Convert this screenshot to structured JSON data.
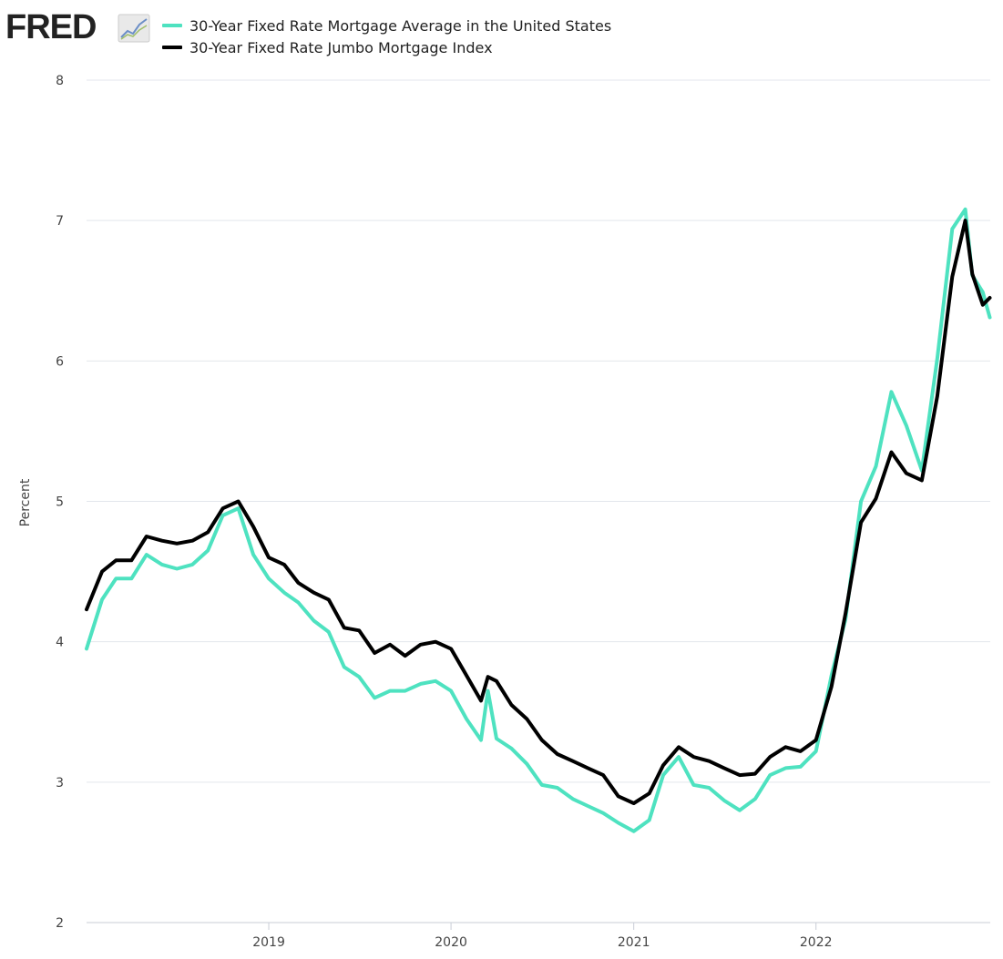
{
  "logo": {
    "text": "FRED"
  },
  "legend": {
    "items": [
      {
        "label": "30-Year Fixed Rate Mortgage Average in the United States",
        "color": "#4ee2c0"
      },
      {
        "label": "30-Year Fixed Rate Jumbo Mortgage Index",
        "color": "#000000"
      }
    ]
  },
  "chart_data": {
    "type": "line",
    "ylabel": "Percent",
    "ylim": [
      2,
      8
    ],
    "yticks": [
      2,
      3,
      4,
      5,
      6,
      7,
      8
    ],
    "xlim": [
      "2018-01-01",
      "2022-12-16"
    ],
    "xticks": [
      {
        "date": "2019-01-01",
        "label": "2019"
      },
      {
        "date": "2020-01-01",
        "label": "2020"
      },
      {
        "date": "2021-01-01",
        "label": "2021"
      },
      {
        "date": "2022-01-01",
        "label": "2022"
      }
    ],
    "grid": true,
    "legend_position": "top-left",
    "series": [
      {
        "name": "30-Year Fixed Rate Mortgage Average in the United States",
        "color": "#4ee2c0",
        "points": [
          [
            "2018-01-01",
            3.95
          ],
          [
            "2018-02-01",
            4.3
          ],
          [
            "2018-03-01",
            4.45
          ],
          [
            "2018-04-01",
            4.45
          ],
          [
            "2018-05-01",
            4.62
          ],
          [
            "2018-06-01",
            4.55
          ],
          [
            "2018-07-01",
            4.52
          ],
          [
            "2018-08-01",
            4.55
          ],
          [
            "2018-09-01",
            4.65
          ],
          [
            "2018-10-01",
            4.9
          ],
          [
            "2018-11-01",
            4.95
          ],
          [
            "2018-12-01",
            4.62
          ],
          [
            "2019-01-01",
            4.45
          ],
          [
            "2019-02-01",
            4.35
          ],
          [
            "2019-03-01",
            4.28
          ],
          [
            "2019-04-01",
            4.15
          ],
          [
            "2019-05-01",
            4.07
          ],
          [
            "2019-06-01",
            3.82
          ],
          [
            "2019-07-01",
            3.75
          ],
          [
            "2019-08-01",
            3.6
          ],
          [
            "2019-09-01",
            3.65
          ],
          [
            "2019-10-01",
            3.65
          ],
          [
            "2019-11-01",
            3.7
          ],
          [
            "2019-12-01",
            3.72
          ],
          [
            "2020-01-01",
            3.65
          ],
          [
            "2020-02-01",
            3.45
          ],
          [
            "2020-03-01",
            3.3
          ],
          [
            "2020-03-15",
            3.65
          ],
          [
            "2020-04-01",
            3.31
          ],
          [
            "2020-05-01",
            3.24
          ],
          [
            "2020-06-01",
            3.13
          ],
          [
            "2020-07-01",
            2.98
          ],
          [
            "2020-08-01",
            2.96
          ],
          [
            "2020-09-01",
            2.88
          ],
          [
            "2020-10-01",
            2.83
          ],
          [
            "2020-11-01",
            2.78
          ],
          [
            "2020-12-01",
            2.71
          ],
          [
            "2021-01-01",
            2.65
          ],
          [
            "2021-02-01",
            2.73
          ],
          [
            "2021-03-01",
            3.05
          ],
          [
            "2021-04-01",
            3.18
          ],
          [
            "2021-05-01",
            2.98
          ],
          [
            "2021-06-01",
            2.96
          ],
          [
            "2021-07-01",
            2.87
          ],
          [
            "2021-08-01",
            2.8
          ],
          [
            "2021-09-01",
            2.88
          ],
          [
            "2021-10-01",
            3.05
          ],
          [
            "2021-11-01",
            3.1
          ],
          [
            "2021-12-01",
            3.11
          ],
          [
            "2022-01-01",
            3.22
          ],
          [
            "2022-02-01",
            3.76
          ],
          [
            "2022-03-01",
            4.16
          ],
          [
            "2022-04-01",
            5.0
          ],
          [
            "2022-05-01",
            5.25
          ],
          [
            "2022-06-01",
            5.78
          ],
          [
            "2022-07-01",
            5.54
          ],
          [
            "2022-08-01",
            5.22
          ],
          [
            "2022-09-01",
            6.02
          ],
          [
            "2022-10-01",
            6.94
          ],
          [
            "2022-10-27",
            7.08
          ],
          [
            "2022-11-10",
            6.61
          ],
          [
            "2022-12-01",
            6.49
          ],
          [
            "2022-12-15",
            6.31
          ]
        ]
      },
      {
        "name": "30-Year Fixed Rate Jumbo Mortgage Index",
        "color": "#000000",
        "points": [
          [
            "2018-01-01",
            4.23
          ],
          [
            "2018-02-01",
            4.5
          ],
          [
            "2018-03-01",
            4.58
          ],
          [
            "2018-04-01",
            4.58
          ],
          [
            "2018-05-01",
            4.75
          ],
          [
            "2018-06-01",
            4.72
          ],
          [
            "2018-07-01",
            4.7
          ],
          [
            "2018-08-01",
            4.72
          ],
          [
            "2018-09-01",
            4.78
          ],
          [
            "2018-10-01",
            4.95
          ],
          [
            "2018-11-01",
            5.0
          ],
          [
            "2018-12-01",
            4.82
          ],
          [
            "2019-01-01",
            4.6
          ],
          [
            "2019-02-01",
            4.55
          ],
          [
            "2019-03-01",
            4.42
          ],
          [
            "2019-04-01",
            4.35
          ],
          [
            "2019-05-01",
            4.3
          ],
          [
            "2019-06-01",
            4.1
          ],
          [
            "2019-07-01",
            4.08
          ],
          [
            "2019-08-01",
            3.92
          ],
          [
            "2019-09-01",
            3.98
          ],
          [
            "2019-10-01",
            3.9
          ],
          [
            "2019-11-01",
            3.98
          ],
          [
            "2019-12-01",
            4.0
          ],
          [
            "2020-01-01",
            3.95
          ],
          [
            "2020-02-01",
            3.76
          ],
          [
            "2020-03-01",
            3.58
          ],
          [
            "2020-03-15",
            3.75
          ],
          [
            "2020-04-01",
            3.72
          ],
          [
            "2020-05-01",
            3.55
          ],
          [
            "2020-06-01",
            3.45
          ],
          [
            "2020-07-01",
            3.3
          ],
          [
            "2020-08-01",
            3.2
          ],
          [
            "2020-09-01",
            3.15
          ],
          [
            "2020-10-01",
            3.1
          ],
          [
            "2020-11-01",
            3.05
          ],
          [
            "2020-12-01",
            2.9
          ],
          [
            "2021-01-01",
            2.85
          ],
          [
            "2021-02-01",
            2.92
          ],
          [
            "2021-03-01",
            3.12
          ],
          [
            "2021-04-01",
            3.25
          ],
          [
            "2021-05-01",
            3.18
          ],
          [
            "2021-06-01",
            3.15
          ],
          [
            "2021-07-01",
            3.1
          ],
          [
            "2021-08-01",
            3.05
          ],
          [
            "2021-09-01",
            3.06
          ],
          [
            "2021-10-01",
            3.18
          ],
          [
            "2021-11-01",
            3.25
          ],
          [
            "2021-12-01",
            3.22
          ],
          [
            "2022-01-01",
            3.3
          ],
          [
            "2022-02-01",
            3.68
          ],
          [
            "2022-03-01",
            4.2
          ],
          [
            "2022-04-01",
            4.85
          ],
          [
            "2022-05-01",
            5.02
          ],
          [
            "2022-06-01",
            5.35
          ],
          [
            "2022-07-01",
            5.2
          ],
          [
            "2022-08-01",
            5.15
          ],
          [
            "2022-09-01",
            5.75
          ],
          [
            "2022-10-01",
            6.6
          ],
          [
            "2022-10-27",
            7.0
          ],
          [
            "2022-11-10",
            6.62
          ],
          [
            "2022-12-01",
            6.4
          ],
          [
            "2022-12-15",
            6.45
          ]
        ]
      }
    ]
  }
}
